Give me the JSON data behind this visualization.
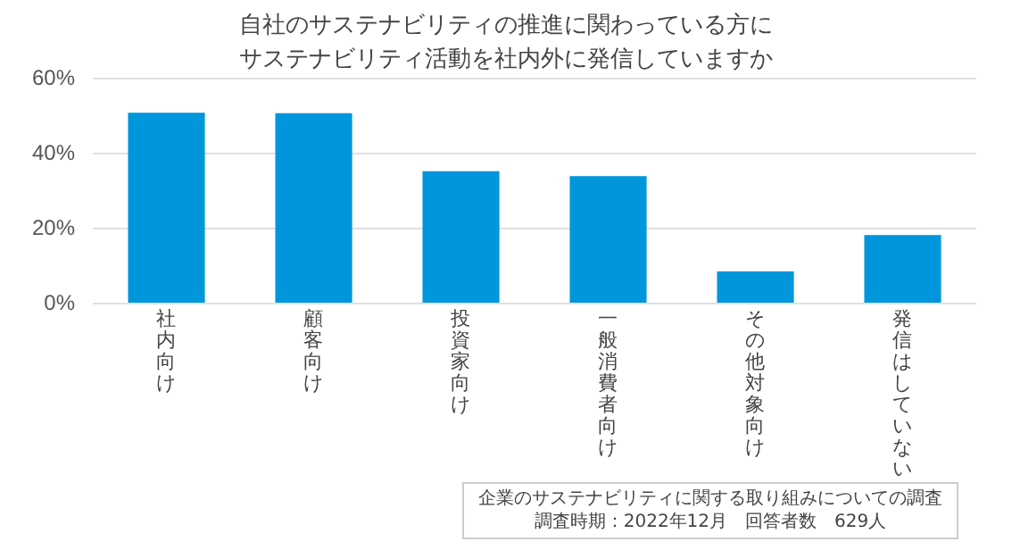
{
  "chart_data": {
    "type": "bar",
    "title": "自社のサステナビリティの推進に関わっている方にサステナビリティ活動を社内外に発信していますか",
    "categories": [
      "社内向け",
      "顧客向け",
      "投資家向け",
      "一般消費者向け",
      "その他対象向け",
      "発信はしていない"
    ],
    "values": [
      50.9,
      50.8,
      35.3,
      34.0,
      8.6,
      18.3
    ],
    "color": "#0096dc",
    "ylim": [
      0,
      60
    ],
    "yticks": [
      {
        "value": 0,
        "label": "0%"
      },
      {
        "value": 20,
        "label": "20%"
      },
      {
        "value": 40,
        "label": "40%"
      },
      {
        "value": 60,
        "label": "60%"
      }
    ],
    "grid": "y",
    "legend": false,
    "annotations": [
      "企業のサステナビリティに関する取り組みについての調査",
      "調査時期：2022年12月　回答者数　629人"
    ]
  }
}
